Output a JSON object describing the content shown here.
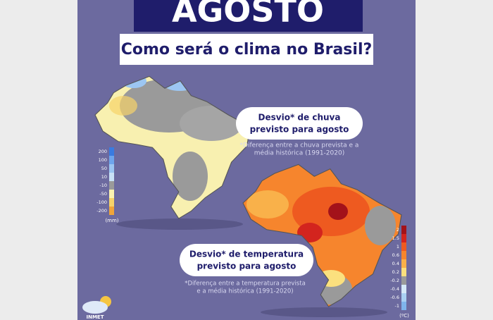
{
  "header": {
    "title": "AGOSTO",
    "subtitle": "Como será o clima no Brasil?"
  },
  "rain_panel": {
    "heading": [
      "Desvio* de chuva",
      "previsto para agosto"
    ],
    "note": [
      "*Diferença entre a chuva prevista e a",
      "média histórica (1991-2020)"
    ],
    "legend": {
      "labels": [
        "200",
        "100",
        "50",
        "10",
        "-10",
        "-50",
        "-100",
        "-200"
      ],
      "colors": [
        "#3a7be0",
        "#6ea5ec",
        "#9cc6f2",
        "#c9e2f7",
        "#9a9a9a",
        "#fbf3b0",
        "#f6d36a",
        "#f0a53a"
      ],
      "unit": "(mm)"
    }
  },
  "temperature_panel": {
    "heading": [
      "Desvio* de temperatura",
      "previsto para agosto"
    ],
    "note": [
      "*Diferença entre a temperatura prevista",
      "e a média histórica (1991-2020)"
    ],
    "legend": {
      "labels": [
        "2",
        "1.5",
        "1",
        "0.6",
        "0.4",
        "0.2",
        "-0.2",
        "-0.4",
        "-0.6",
        "-1"
      ],
      "colors": [
        "#a3121a",
        "#d3241e",
        "#ee5a20",
        "#f6852d",
        "#f9b14a",
        "#fbe07e",
        "#9a9a9a",
        "#d6e9f8",
        "#a9d0f3",
        "#7fb4ec"
      ],
      "unit": "(ºC)"
    }
  },
  "footer": {
    "logo": "INMET"
  }
}
